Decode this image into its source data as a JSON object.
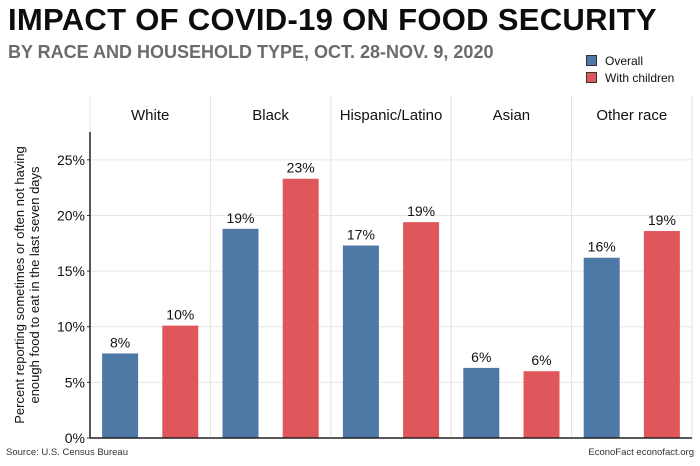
{
  "header": {
    "title": "IMPACT OF COVID-19  ON FOOD SECURITY",
    "subtitle": "BY RACE AND HOUSEHOLD TYPE, OCT. 28-NOV. 9, 2020"
  },
  "footer": {
    "source": "Source: U.S. Census Bureau",
    "credit": "EconoFact  econofact.org"
  },
  "chart_data": {
    "type": "bar",
    "title": "IMPACT OF COVID-19  ON FOOD SECURITY",
    "subtitle": "BY RACE AND HOUSEHOLD TYPE, OCT. 28-NOV. 9, 2020",
    "categories": [
      "White",
      "Black",
      "Hispanic/Latino",
      "Asian",
      "Other race"
    ],
    "series": [
      {
        "name": "Overall",
        "color": "#4e78a6",
        "values": [
          7.6,
          18.8,
          17.3,
          6.3,
          16.2
        ],
        "labels": [
          "8%",
          "19%",
          "17%",
          "6%",
          "16%"
        ]
      },
      {
        "name": "With children",
        "color": "#e0575b",
        "values": [
          10.1,
          23.3,
          19.4,
          6.0,
          18.6
        ],
        "labels": [
          "10%",
          "23%",
          "19%",
          "6%",
          "19%"
        ]
      }
    ],
    "xlabel": "",
    "ylabel": "Percent reporting sometimes or often not having enough food to eat in the last seven days",
    "ylim": [
      0,
      27.5
    ],
    "yticks": [
      0,
      5,
      10,
      15,
      20,
      25
    ],
    "ytick_labels": [
      "0%",
      "5%",
      "10%",
      "15%",
      "20%",
      "25%"
    ],
    "grid": true,
    "legend_position": "top-right",
    "facet_strips": true
  }
}
